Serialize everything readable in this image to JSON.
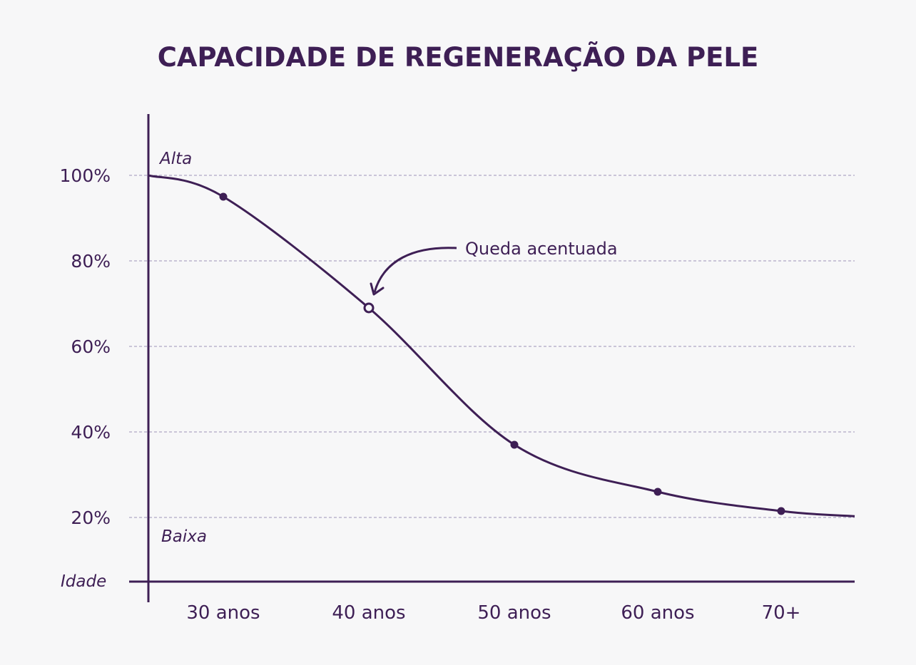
{
  "chart_data": {
    "type": "line",
    "title": "CAPACIDADE DE REGENERAÇÃO DA PELE",
    "xlabel": "Idade",
    "ylabel": "",
    "categories": [
      "30 anos",
      "40 anos",
      "50 anos",
      "60 anos",
      "70+"
    ],
    "y_ticks": [
      "100%",
      "80%",
      "60%",
      "40%",
      "20%"
    ],
    "ylim": [
      5,
      115
    ],
    "y_level_labels": {
      "high": "Alta",
      "low": "Baixa"
    },
    "grid": "horizontal dashed",
    "series": [
      {
        "values": [
          95,
          69,
          37,
          26,
          21.5
        ]
      }
    ],
    "annotation": {
      "text": "Queda acentuada",
      "target_index": 1
    },
    "colors": {
      "accent": "#3e1f55",
      "grid": "#9c93b8",
      "background": "#f7f7f8"
    }
  }
}
